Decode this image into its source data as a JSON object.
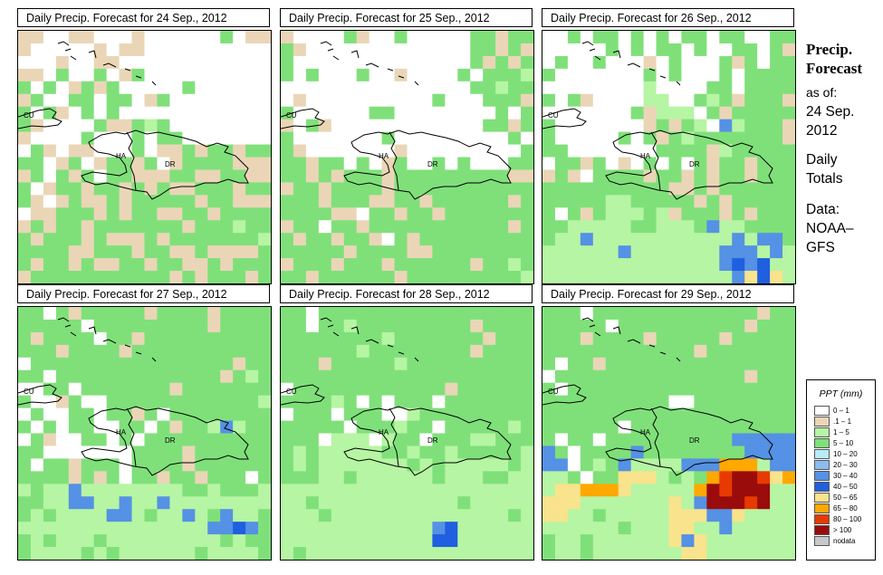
{
  "panels": [
    {
      "title": "Daily Precip. Forecast for  24 Sep., 2012",
      "pattern": [
        "BBWWBBWWWBWWWWWWGWBB",
        "BWWWWWBWBBWWWWWWWWWW",
        "WWWBWWBBWWWWWWWWWWWW",
        "BBWGWWGWBGWWWWWWWWWW",
        "GWGWBGBGWWWWWGWWWWWW",
        "BGWWGGWGGWBGWWWWWWWW",
        "GWGBWGWGWWWWWWWWWWWW",
        "GBWWWWGBBGLGWWWWWWWW",
        "BWWWWGWWWGWGGWWWWWWW",
        "WGBWBBWWWGWBBGBGGBGG",
        "GGWBGWBGGBGWBGGGGBBB",
        "BGWGBGWGGBBBGGBBGGBB",
        "GWBGGBGGBGBGBBGGGBGG",
        "GBWBGBBGBGGGGGBGGBBB",
        "WBBGGGBGBGGBBGGBGGGG",
        "BGBGGBGGGGGGGBGGGLGG",
        "GBGGGBGBBBGBGGGGGGGL",
        "GGGGBBGGGBGGBBGBBBBG",
        "GBGGBGBBGGBGGBBGBGGG",
        "BGGGGGGGGGGGBGBGGGBG"
      ]
    },
    {
      "title": "Daily Precip. Forecast for  25 Sep., 2012",
      "pattern": [
        "BWWWWGBWWGWWWWWGGBGG",
        "GBWWWWWWWWWWWWWGGBGB",
        "GWWWWWWWWWWWWWWGBGBG",
        "GWGWWWGWWBWWWWGWGGGL",
        "WWWWWWWWWWWWWWWGGLGG",
        "WBWWWWWWWWWWGWWWGGGB",
        "GWWWWWWGGWWWWWWWWGWG",
        "BWGBWWWWWWWWWWWWGGBG",
        "GWWWWWWWGWWWWWWWWWGW",
        "GBWWWWWWWBWWWWWWWWWG",
        "GGBGGWGWBGWWGWGWWWGG",
        "GGBGBGGGBGGGGGGGGGBB",
        "BGGBGGGGBGGGGGGGGGGG",
        "GGGBGGGBBGGBGGGGGGBG",
        "GGGGBBWGGBGGBGGGGGGG",
        "BGGWGGBGGGGGGGGGGGBG",
        "GBGGBGGBWGBGGGGGGGGG",
        "GGGGGBGGGGBBGGGGGGGG",
        "BGGGBGGGBGGGGGGBGGLG",
        "GGBGGGGGGBGGGGGGGGGL"
      ]
    },
    {
      "title": "Daily Precip. Forecast for  26 Sep., 2012",
      "pattern": [
        "WWGWGGWGWGWGGWGGWWGG",
        "WWWWWGWGWGGWGWWGGWGB",
        "WGWWGWWWBWGWWWGBGWGG",
        "GWWWWWWWGWGWWWGWGGGG",
        "WWWWWWWWLWWWWGGWGGGG",
        "GWGBWWWWLLWWGLGBGGGB",
        "WWWWWWWGBLLLWGBGGGGG",
        "GWWWWWWWBGBGLWMLGGGB",
        "GWWWWWGWGBGLGGGGGGGB",
        "GGWWWWWWWGGGGBLGGGGG",
        "WGGBGWBWGWGWGBGGBGGG",
        "BGBWGGGGBGGBGBGGBGGG",
        "GGGGGGGGGGBBGBGGGGGG",
        "GGGGGLLGGGGGBGBGGGGG",
        "GWGBGLLLGLBGGGBGBGGG",
        "GGLLLLLGGLLLGMLLGGGG",
        "GLLMLLLLLLLLLLLMLMMG",
        "LLLLLLMLLLLLLLMMMLML",
        "LLLLLLLLLLLLLLMDMDLL",
        "LLLLLLLLLLLLLLLMYDYL"
      ]
    },
    {
      "title": "Daily Precip. Forecast for  27 Sep., 2012",
      "pattern": [
        "GGWGBGGGGGBGGGGBGGGG",
        "GGGGGWGGGGGGGGGBGGGG",
        "GBGGGGWGGBGGGGGGGGGG",
        "GGGBGGGGBGGGGGGGGGGG",
        "WGGGGGGGGGGGGGGGGBGG",
        "GGWGGGGGGGGGGGGGBGLG",
        "WWGGWGGGGGGGBGGGGGGG",
        "GWWBGWWGGGGGGGGGGGGL",
        "WGWWGGWGGBGWGGGGGGGG",
        "GWGWGGWWGGWGBGGLMLGG",
        "WGBWWGGWGWGGGGGGGGGG",
        "GGWWWWWWWGGGGBGGGGGG",
        "GWGGBGGGWGGGGBGGGGGG",
        "GGGGBGBGWGGBGGBGGGWG",
        "LGLLMLLLLLLLLGGLGGGL",
        "GGLLMMLLMLLMLLLLLLLL",
        "GLGLLLLMMLGLLMLGMLLG",
        "LLLLLLLLLLLLLLLMMDMG",
        "GLGLLLGLLLLLLLLLGLGG",
        "GLLLLGLGLLLLLLGLLLLG"
      ]
    },
    {
      "title": "Daily Precip. Forecast for  28 Sep., 2012",
      "pattern": [
        "GGWGGGGGGGGGGGGGGGGG",
        "GGWGGLGGGGGGGGGBGGGG",
        "GGGGGGGGLGGGGGGGBGGG",
        "GGGGGGLGGGGGGGGBGGGG",
        "GGGBGGGGGLGGGGGGGGGG",
        "GGGGGGGGGGGGGGGGGGGG",
        "WGGGGGGGGGGGGBGGGGGG",
        "GGGGLGWGWGGGWGGGGGGG",
        "WGGGWGGGWWLGGGGGGGGG",
        "GGGGGWGGGLGGWGGGGGLG",
        "GGGWLLLWLGGWGGGLLGGG",
        "GLGLLLLLGGLGGLGGGGGL",
        "GLGLLLLLLLGLGLLLLLGL",
        "GGGLLGLLLLLLGLLLGGLL",
        "LLLLLLLLLLLLLLLLLLLL",
        "LLGLLLLLLLLLLLGLLLLL",
        "LLLGLLLLLLLLLLLLLLGL",
        "LLLLLLLLLLLLMDLLLLLL",
        "LLLLLLLLLLLLDDLLLLLL",
        "LGLLLLLLLLLLLLLLLLLL"
      ]
    },
    {
      "title": "Daily Precip. Forecast for  29 Sep., 2012",
      "pattern": [
        "GGGWGGGGGGGGGGGGGBGG",
        "GGGGGWGGGGGGGGGGBGGG",
        "GGGBGGGGBGGGGGBGGGGG",
        "GGGGGGGGGGGGBGGGGGGG",
        "GWGGBGGGGGGGGGGGGGGG",
        "WGGGGGGGGGGGGGGGBGGG",
        "GWGGGGGGGGGGGGGGGGGG",
        "GGGGGGGGGGWWGGGGGGGG",
        "GGGGGGGGGGGGGGGGGGGG",
        "GGGGGGWGGGGGGGGGGGGG",
        "GWGGWGGGGGGGGGGMMMMM",
        "MGWGGGGMGGGGGGGGMMMM",
        "MMWGLGMLLLLMMMOOOLMM",
        "LLGWGGYYYLGLGOERREYO",
        "LYYOOOYLLLLLORERRRLL",
        "YYYLLLLLLLYLMRRRERLL",
        "YYLLGLLLLLYYYMMYLLLL",
        "LLLLLLGLLLYYLLMLLLLL",
        "GLLGLLLLLLYMYLLLLLLL",
        "GLLGLLLLLLLYYLLLLLLL"
      ]
    }
  ],
  "map_labels": {
    "cuba": "CU",
    "haiti": "HA",
    "dominican_republic": "DR"
  },
  "sidebar": {
    "title_line1": "Precip.",
    "title_line2": "Forecast",
    "as_of_label": "as of:",
    "date_line1": "24 Sep.",
    "date_line2": "2012",
    "totals_line1": "Daily",
    "totals_line2": "Totals",
    "data_label": "Data:",
    "source_line1": "NOAA–",
    "source_line2": "GFS"
  },
  "legend": {
    "title": "PPT (mm)",
    "items": [
      {
        "label": "0 – 1",
        "color": "#ffffff"
      },
      {
        "label": ".1 – 1",
        "color": "#ead6b7"
      },
      {
        "label": "1 – 5",
        "color": "#b6f5a3"
      },
      {
        "label": "5 – 10",
        "color": "#7fe07a"
      },
      {
        "label": "10 – 20",
        "color": "#b9ecf8"
      },
      {
        "label": "20 – 30",
        "color": "#8bbbf0"
      },
      {
        "label": "30 – 40",
        "color": "#5591e4"
      },
      {
        "label": "40 – 50",
        "color": "#1f5fe0"
      },
      {
        "label": "50 – 65",
        "color": "#f9e38d"
      },
      {
        "label": "65 – 80",
        "color": "#ffa800"
      },
      {
        "label": "80 – 100",
        "color": "#e83a00"
      },
      {
        "label": "> 100",
        "color": "#9a0c0c"
      },
      {
        "label": "nodata",
        "color": "#c8c8c8"
      }
    ]
  },
  "colors": {
    "W": "#ffffff",
    "B": "#ead6b7",
    "L": "#b6f5a3",
    "G": "#7fe07a",
    "C": "#b9ecf8",
    "S": "#8bbbf0",
    "M": "#5591e4",
    "D": "#1f5fe0",
    "Y": "#f9e38d",
    "O": "#ffa800",
    "E": "#e83a00",
    "R": "#9a0c0c"
  }
}
